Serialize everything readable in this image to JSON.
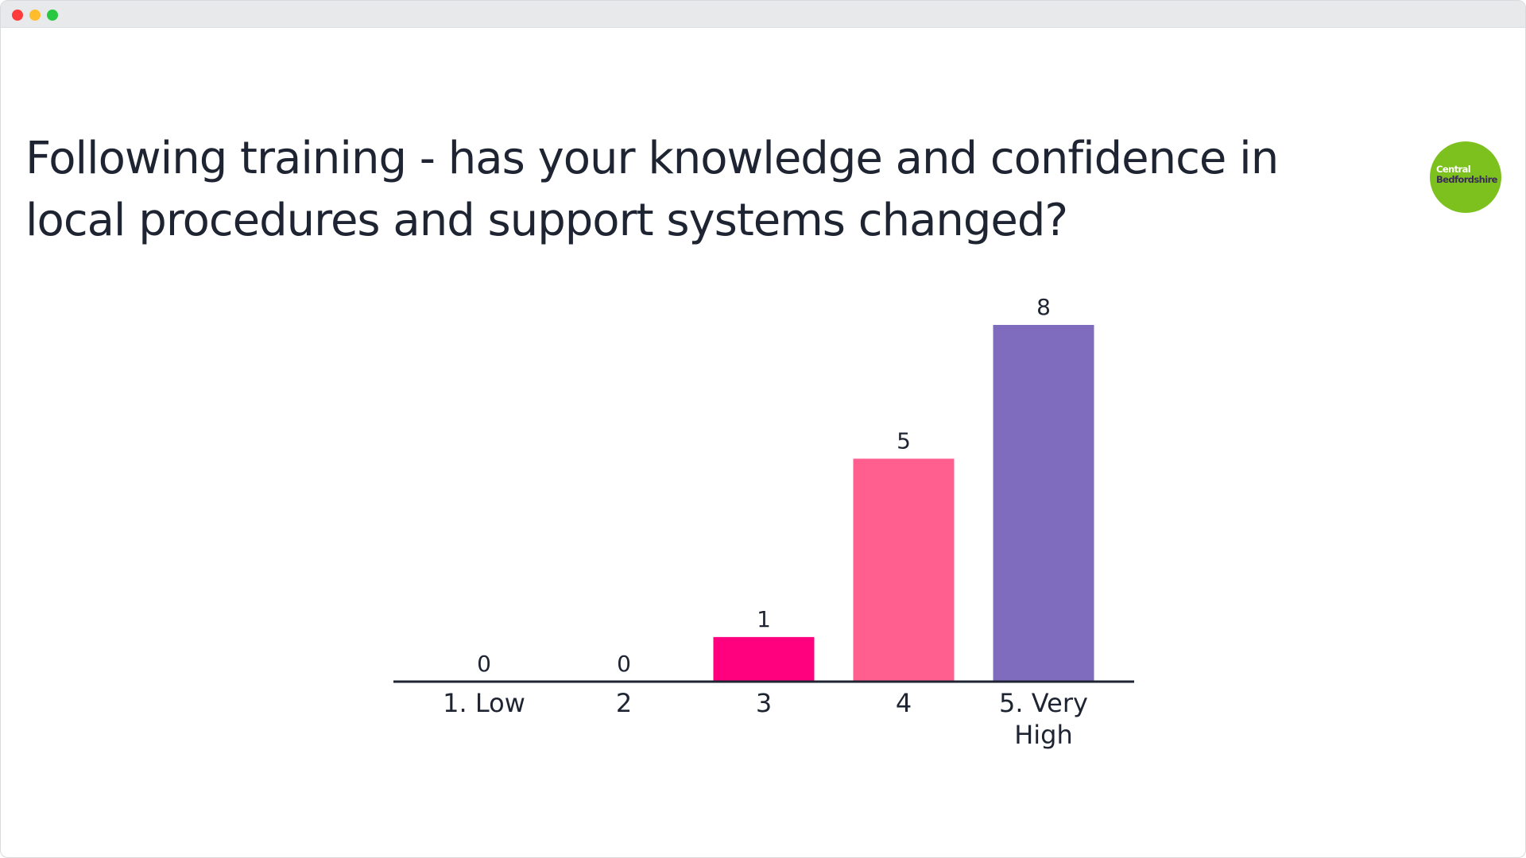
{
  "window": {
    "controls": [
      "close",
      "minimize",
      "maximize"
    ]
  },
  "slide": {
    "title": "Following training - has your knowledge and confidence in local procedures and support systems changed?",
    "logo": {
      "line1": "Central",
      "line2": "Bedfordshire"
    }
  },
  "colors": {
    "text": "#1e2431",
    "bar_3": "#ff007f",
    "bar_4": "#ff5f8f",
    "bar_5": "#806cbe",
    "logo": "#7dc11f"
  },
  "chart_data": {
    "type": "bar",
    "categories": [
      "1. Low",
      "2",
      "3",
      "4",
      "5. Very High"
    ],
    "values": [
      0,
      0,
      1,
      5,
      8
    ],
    "bar_colors": [
      "#ff007f",
      "#ff007f",
      "#ff007f",
      "#ff5f8f",
      "#806cbe"
    ],
    "data_labels": true,
    "xlabel": "",
    "ylabel": "",
    "ylim": [
      0,
      8
    ],
    "grid": false,
    "legend": "none"
  }
}
